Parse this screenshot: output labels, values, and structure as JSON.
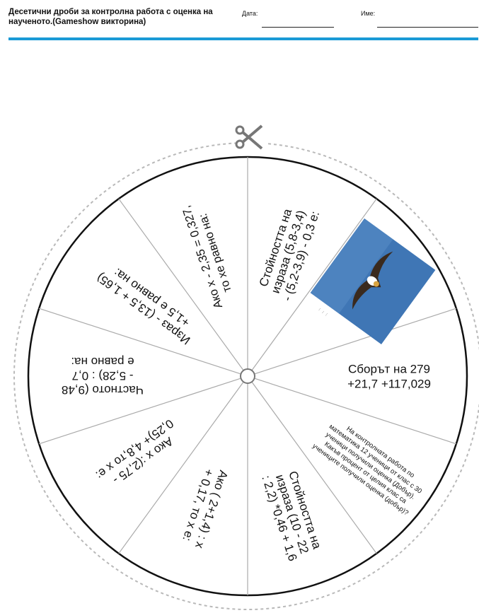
{
  "header": {
    "title": "Десетични дроби за контролна работа с оценка на наученото.(Gameshow викторина)",
    "date_label": "Дата:",
    "name_label": "Име:"
  },
  "wheel": {
    "scissors_icon": "scissors-icon",
    "segments": [
      {
        "lines": [
          "Стойността на",
          "израза (5,8-3,4)",
          "- (5,2-3,9) - 0,3 е:"
        ]
      },
      {
        "lines": [],
        "image": "eagle-photo",
        "lines_small": [
          "...",
          "...",
          "..."
        ]
      },
      {
        "lines": [
          "Сборът на 279",
          "+21,7 +117,029"
        ]
      },
      {
        "lines": [
          "На контролната работа по",
          "математика 12 ученици от клас с 30",
          "ученици получили оценка (Добър).",
          "Какъв процент от целия клас са",
          "учениците получили оценка (добър)?"
        ]
      },
      {
        "lines": [
          "Стойността на",
          "израза (10 - 22",
          ": 2,2) *0,46 + 1,6"
        ]
      },
      {
        "lines": [
          "Ако ( 2+1,4) : x",
          "+ 0,17, то x е:"
        ]
      },
      {
        "lines": [
          "Ако x :(2,75 -",
          "0,25)+ 4,8,то x е:"
        ]
      },
      {
        "lines": [
          "Частното (9,48",
          "- 5,28) : 0,7",
          "е равно на:"
        ]
      },
      {
        "lines": [
          "Израз - (13,5 + 1,65)",
          "+1,5 е равно на:"
        ]
      },
      {
        "lines": [
          "Ако x - 2,35 = 0,327,",
          "то xe равно на:"
        ]
      }
    ]
  }
}
